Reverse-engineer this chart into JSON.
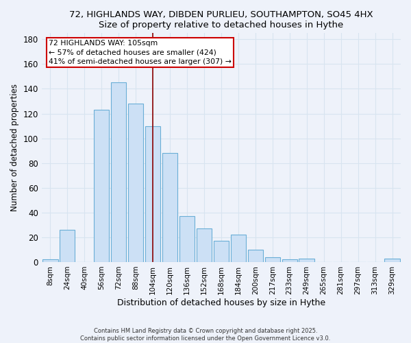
{
  "title": "72, HIGHLANDS WAY, DIBDEN PURLIEU, SOUTHAMPTON, SO45 4HX",
  "subtitle": "Size of property relative to detached houses in Hythe",
  "xlabel": "Distribution of detached houses by size in Hythe",
  "ylabel": "Number of detached properties",
  "bar_labels": [
    "8sqm",
    "24sqm",
    "40sqm",
    "56sqm",
    "72sqm",
    "88sqm",
    "104sqm",
    "120sqm",
    "136sqm",
    "152sqm",
    "168sqm",
    "184sqm",
    "200sqm",
    "217sqm",
    "233sqm",
    "249sqm",
    "265sqm",
    "281sqm",
    "297sqm",
    "313sqm",
    "329sqm"
  ],
  "bar_values": [
    2,
    26,
    0,
    123,
    145,
    128,
    110,
    88,
    37,
    27,
    17,
    22,
    10,
    4,
    2,
    3,
    0,
    0,
    0,
    0,
    3
  ],
  "bar_color": "#cce0f5",
  "bar_edge_color": "#6aaed6",
  "vline_x_index": 6,
  "vline_color": "#8b0000",
  "annotation_title": "72 HIGHLANDS WAY: 105sqm",
  "annotation_line1": "← 57% of detached houses are smaller (424)",
  "annotation_line2": "41% of semi-detached houses are larger (307) →",
  "annotation_box_color": "white",
  "annotation_box_edge_color": "#cc0000",
  "ylim": [
    0,
    185
  ],
  "yticks": [
    0,
    20,
    40,
    60,
    80,
    100,
    120,
    140,
    160,
    180
  ],
  "footnote1": "Contains HM Land Registry data © Crown copyright and database right 2025.",
  "footnote2": "Contains public sector information licensed under the Open Government Licence v3.0.",
  "bg_color": "#eef2fa",
  "grid_color": "#d8e4f0"
}
